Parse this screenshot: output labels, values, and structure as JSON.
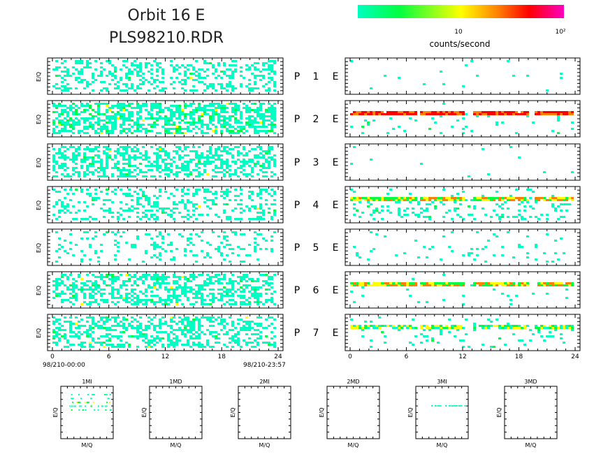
{
  "header": {
    "title_line1": "Orbit 16 E",
    "title_line2": "PLS98210.RDR"
  },
  "colorbar": {
    "colors": [
      "#00ffc0",
      "#00ff40",
      "#ffff00",
      "#ff8000",
      "#ff0000",
      "#ff00c0"
    ],
    "tick_labels": [
      "10",
      "10²"
    ],
    "label": "counts/second"
  },
  "chart_data": [
    {
      "type": "heatmap",
      "title": "",
      "columns": [
        "left",
        "right"
      ],
      "ylabel": "E/Q",
      "xlim": [
        0,
        24
      ],
      "x_ticks": [
        0,
        6,
        12,
        18,
        24
      ],
      "time_start": "98/210-00:00",
      "time_end": "98/210-23:57",
      "rows": [
        {
          "letter": "P",
          "number": "1",
          "suffix": "E",
          "left_density": 0.32,
          "left_high": 0.02,
          "right_density": 0.012,
          "right_band": null
        },
        {
          "letter": "P",
          "number": "2",
          "suffix": "E",
          "left_density": 0.55,
          "left_high": 0.14,
          "right_density": 0.06,
          "right_band": "strong"
        },
        {
          "letter": "P",
          "number": "3",
          "suffix": "E",
          "left_density": 0.45,
          "left_high": 0.04,
          "right_density": 0.006,
          "right_band": null
        },
        {
          "letter": "P",
          "number": "4",
          "suffix": "E",
          "left_density": 0.28,
          "left_high": 0.03,
          "right_density": 0.22,
          "right_band": "medium"
        },
        {
          "letter": "P",
          "number": "5",
          "suffix": "E",
          "left_density": 0.14,
          "left_high": 0.01,
          "right_density": 0.05,
          "right_band": null
        },
        {
          "letter": "P",
          "number": "6",
          "suffix": "E",
          "left_density": 0.45,
          "left_high": 0.05,
          "right_density": 0.05,
          "right_band": "medium"
        },
        {
          "letter": "P",
          "number": "7",
          "suffix": "E",
          "left_density": 0.4,
          "left_high": 0.05,
          "right_density": 0.1,
          "right_band": "weak"
        }
      ]
    },
    {
      "type": "scatter",
      "title": "",
      "xlabel": "M/Q",
      "ylabel": "E/Q",
      "panels": [
        {
          "name": "1MI",
          "has_data": true
        },
        {
          "name": "1MD",
          "has_data": false
        },
        {
          "name": "2MI",
          "has_data": false
        },
        {
          "name": "2MD",
          "has_data": false
        },
        {
          "name": "3MI",
          "has_data": true
        },
        {
          "name": "3MD",
          "has_data": false
        }
      ]
    }
  ]
}
